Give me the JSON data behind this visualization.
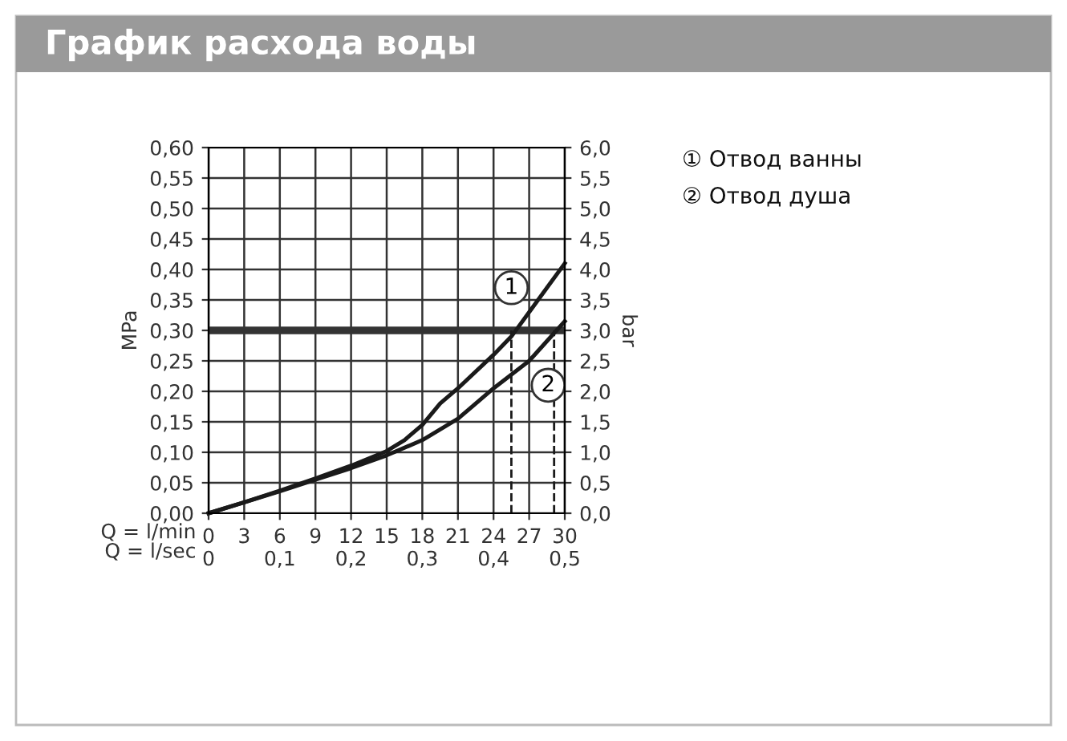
{
  "chart_data": {
    "type": "line",
    "title": "График расхода воды",
    "xlabel": "Q = l/min",
    "x2label": "Q = l/sec",
    "ylabel": "MPa",
    "y2label": "bar",
    "xlim": [
      0,
      30
    ],
    "xticks": [
      0,
      3,
      6,
      9,
      12,
      15,
      18,
      21,
      24,
      27,
      30
    ],
    "x2lim": [
      0,
      0.5
    ],
    "x2ticks": [
      0,
      {
        "value": 0.1,
        "label": "0,1"
      },
      {
        "value": 0.2,
        "label": "0,2"
      },
      {
        "value": 0.3,
        "label": "0,3"
      },
      {
        "value": 0.4,
        "label": "0,4"
      },
      {
        "value": 0.5,
        "label": "0,5"
      }
    ],
    "ylim": [
      0,
      0.6
    ],
    "yticks": [
      {
        "value": 0,
        "label": "0,00"
      },
      {
        "value": 0.05,
        "label": "0,05"
      },
      {
        "value": 0.1,
        "label": "0,10"
      },
      {
        "value": 0.15,
        "label": "0,15"
      },
      {
        "value": 0.2,
        "label": "0,20"
      },
      {
        "value": 0.25,
        "label": "0,25"
      },
      {
        "value": 0.3,
        "label": "0,30"
      },
      {
        "value": 0.35,
        "label": "0,35"
      },
      {
        "value": 0.4,
        "label": "0,40"
      },
      {
        "value": 0.45,
        "label": "0,45"
      },
      {
        "value": 0.5,
        "label": "0,50"
      },
      {
        "value": 0.55,
        "label": "0,55"
      },
      {
        "value": 0.6,
        "label": "0,60"
      }
    ],
    "y2lim": [
      0,
      6
    ],
    "y2ticks": [
      {
        "value": 0,
        "label": "0,0"
      },
      {
        "value": 0.5,
        "label": "0,5"
      },
      {
        "value": 1,
        "label": "1,0"
      },
      {
        "value": 1.5,
        "label": "1,5"
      },
      {
        "value": 2,
        "label": "2,0"
      },
      {
        "value": 2.5,
        "label": "2,5"
      },
      {
        "value": 3,
        "label": "3,0"
      },
      {
        "value": 3.5,
        "label": "3,5"
      },
      {
        "value": 4,
        "label": "4,0"
      },
      {
        "value": 4.5,
        "label": "4,5"
      },
      {
        "value": 5,
        "label": "5,0"
      },
      {
        "value": 5.5,
        "label": "5,5"
      },
      {
        "value": 6,
        "label": "6,0"
      }
    ],
    "grid": true,
    "marker": "none",
    "line_style": "solid",
    "series": [
      {
        "color": "#1a1a1a",
        "x": [
          0,
          3,
          6,
          9,
          12,
          15,
          16.5,
          18,
          19.5,
          21,
          24,
          25.5,
          27,
          28.5,
          30
        ],
        "values": [
          0,
          0.018,
          0.037,
          0.057,
          0.078,
          0.102,
          0.12,
          0.145,
          0.18,
          0.205,
          0.26,
          0.29,
          0.33,
          0.37,
          0.41
        ]
      },
      {
        "color": "#1a1a1a",
        "x": [
          0,
          3,
          6,
          9,
          12,
          15,
          18,
          21,
          24,
          27,
          30
        ],
        "values": [
          0,
          0.018,
          0.036,
          0.055,
          0.074,
          0.095,
          0.12,
          0.155,
          0.205,
          0.25,
          0.315
        ]
      }
    ],
    "ref_lines": [
      {
        "axis": "y",
        "value": 0.3,
        "color": "#333333",
        "line_style": "solid"
      },
      {
        "axis": "x",
        "value": 25.5,
        "color": "#1a1a1a",
        "line_style": "dashed"
      },
      {
        "axis": "x",
        "value": 29.1,
        "color": "#1a1a1a",
        "line_style": "dashed"
      }
    ],
    "annotations": [
      {
        "text": "1",
        "x": 25.5,
        "y": 0.37
      },
      {
        "text": "2",
        "x": 28.6,
        "y": 0.21
      },
      "① Отвод ванны",
      "② Отвод душа"
    ]
  }
}
